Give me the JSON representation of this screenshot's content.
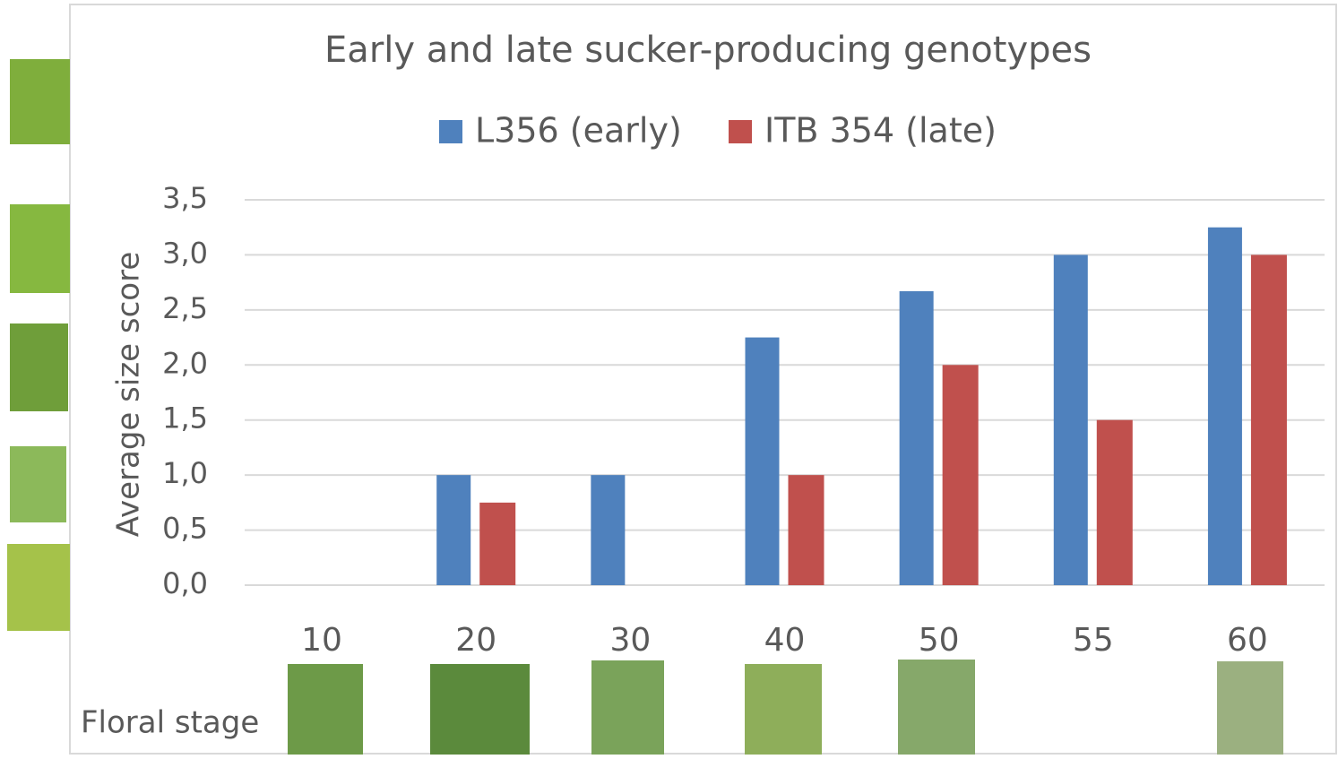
{
  "chart_data": {
    "type": "bar",
    "title": "Early and late sucker-producing genotypes",
    "y_label": "Average size  score",
    "annotation": "Floral stage",
    "categories": [
      "10",
      "20",
      "30",
      "40",
      "50",
      "55",
      "60"
    ],
    "series": [
      {
        "name": "L356 (early)",
        "color": "#4f81bd",
        "values": [
          0,
          1,
          1,
          2.25,
          2.67,
          3,
          3.25
        ]
      },
      {
        "name": "ITB 354 (late)",
        "color": "#c0504d",
        "values": [
          0,
          0.75,
          0,
          1,
          2,
          1.5,
          3
        ]
      }
    ],
    "ylim": [
      0,
      3.5
    ],
    "yticks": [
      {
        "value": 0,
        "label": "0,0"
      },
      {
        "value": 0.5,
        "label": "0,5"
      },
      {
        "value": 1,
        "label": "1,0"
      },
      {
        "value": 1.5,
        "label": "1,5"
      },
      {
        "value": 2,
        "label": "2,0"
      },
      {
        "value": 2.5,
        "label": "2,5"
      },
      {
        "value": 3,
        "label": "3,0"
      },
      {
        "value": 3.5,
        "label": "3,5"
      }
    ],
    "grid": true,
    "legend": "top"
  }
}
